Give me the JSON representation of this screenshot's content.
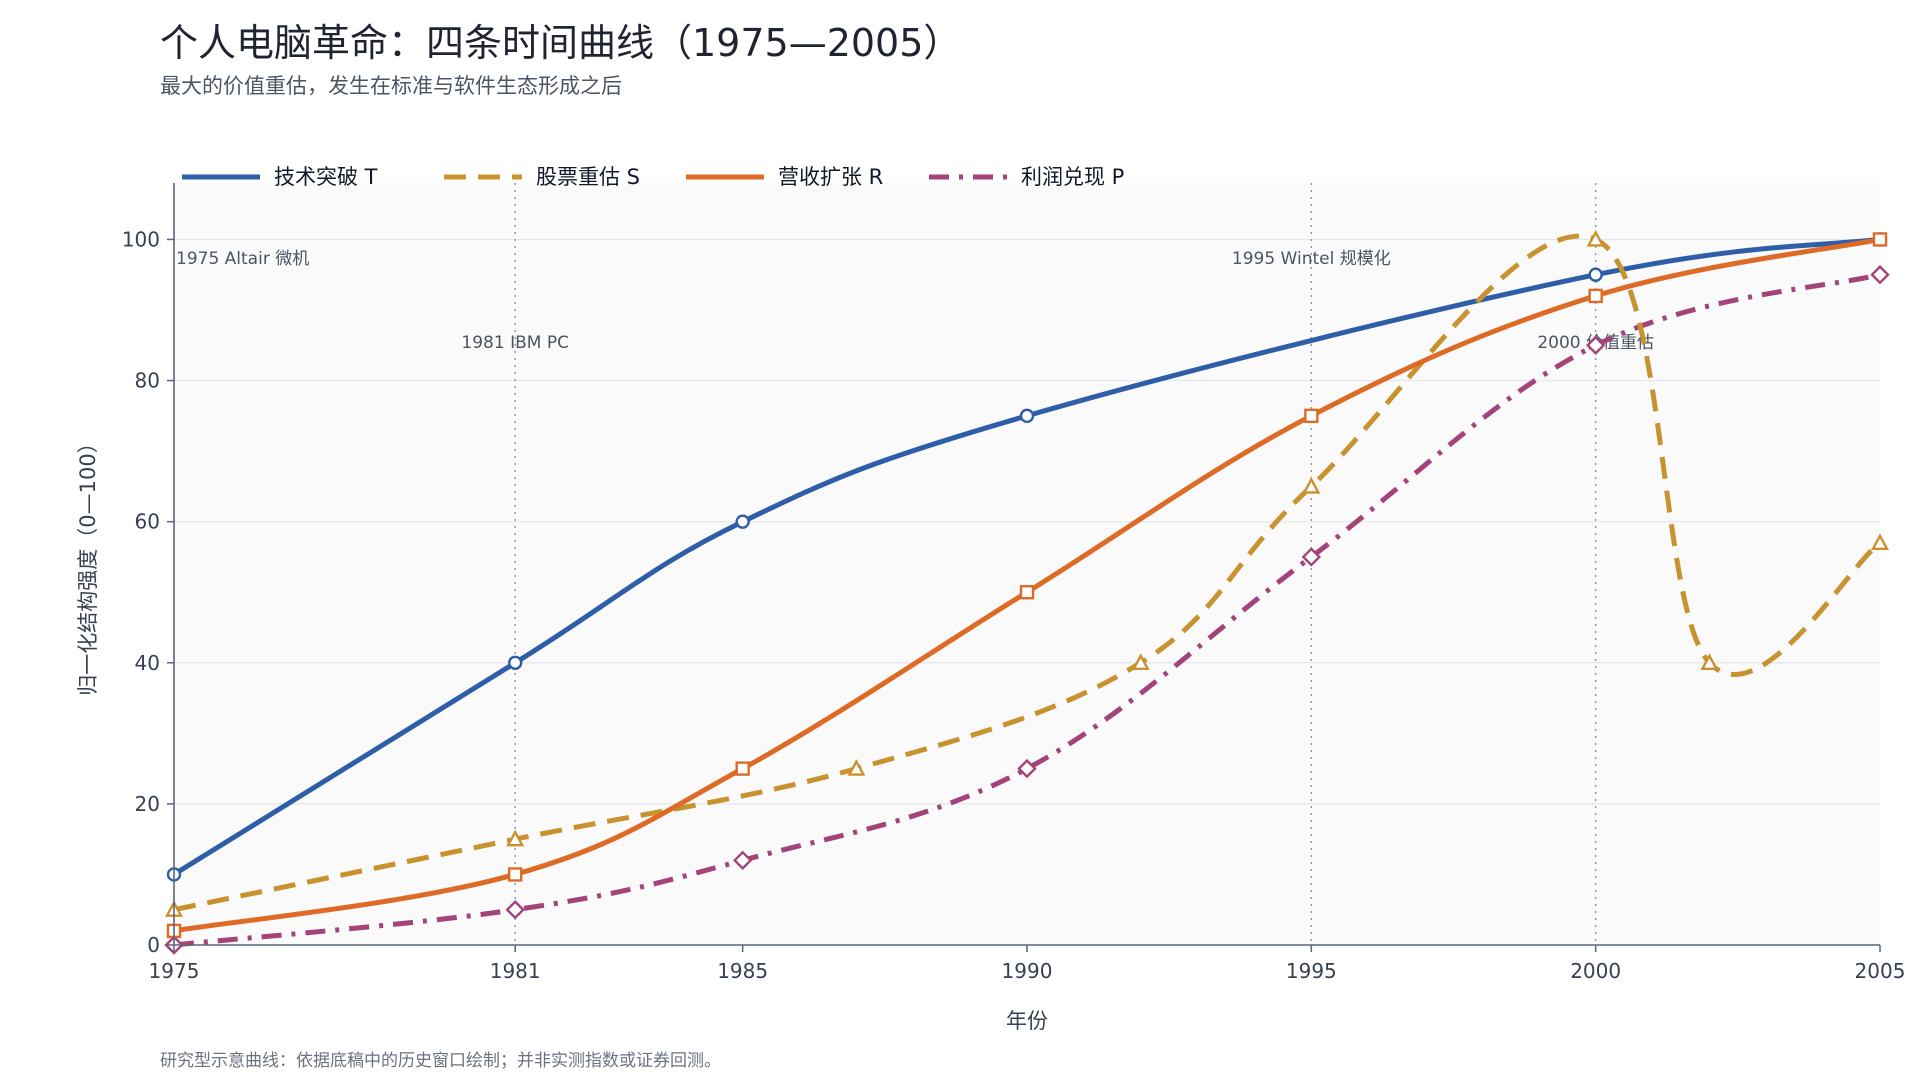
{
  "header": {
    "title": "个人电脑革命：四条时间曲线（1975—2005）",
    "subtitle": "最大的价值重估，发生在标准与软件生态形成之后"
  },
  "footnote": "研究型示意曲线：依据底稿中的历史窗口绘制；并非实测指数或证券回测。",
  "chart_data": {
    "type": "line",
    "title": "个人电脑革命：四条时间曲线（1975—2005）",
    "subtitle": "最大的价值重估，发生在标准与软件生态形成之后",
    "xlabel": "年份",
    "ylabel": "归一化结构强度（0—100）",
    "xlim": [
      1975,
      2005
    ],
    "ylim": [
      0,
      108
    ],
    "x_ticks": [
      1975,
      1981,
      1985,
      1990,
      1995,
      2000,
      2005
    ],
    "y_ticks": [
      0,
      20,
      40,
      60,
      80,
      100
    ],
    "grid": "horizontal",
    "legend_position": "top-left",
    "background": "#fafafa",
    "series": [
      {
        "name": "技术突破 T",
        "color": "#2f5ea8",
        "dash": "solid",
        "marker": "circle",
        "points": [
          [
            1975,
            10
          ],
          [
            1981,
            40
          ],
          [
            1985,
            60
          ],
          [
            1990,
            75
          ],
          [
            2000,
            95
          ],
          [
            2005,
            100
          ]
        ]
      },
      {
        "name": "股票重估 S",
        "color": "#c8922f",
        "dash": "dashed",
        "marker": "triangle",
        "points": [
          [
            1975,
            5
          ],
          [
            1981,
            15
          ],
          [
            1987,
            25
          ],
          [
            1992,
            40
          ],
          [
            1995,
            65
          ],
          [
            2000,
            100
          ],
          [
            2002,
            40
          ],
          [
            2005,
            57
          ]
        ]
      },
      {
        "name": "营收扩张 R",
        "color": "#dd6b25",
        "dash": "solid",
        "marker": "square",
        "points": [
          [
            1975,
            2
          ],
          [
            1981,
            10
          ],
          [
            1985,
            25
          ],
          [
            1990,
            50
          ],
          [
            1995,
            75
          ],
          [
            2000,
            92
          ],
          [
            2005,
            100
          ]
        ]
      },
      {
        "name": "利润兑现 P",
        "color": "#a3437a",
        "dash": "dashdot",
        "marker": "diamond",
        "points": [
          [
            1975,
            0
          ],
          [
            1981,
            5
          ],
          [
            1985,
            12
          ],
          [
            1990,
            25
          ],
          [
            1995,
            55
          ],
          [
            2000,
            85
          ],
          [
            2005,
            95
          ]
        ]
      }
    ],
    "annotations": [
      {
        "year": 1975,
        "label": "1975  Altair 微机",
        "row": "upper"
      },
      {
        "year": 1981,
        "label": "1981  IBM PC",
        "row": "lower"
      },
      {
        "year": 1995,
        "label": "1995  Wintel 规模化",
        "row": "upper"
      },
      {
        "year": 2000,
        "label": "2000  价值重估",
        "row": "lower"
      }
    ]
  }
}
